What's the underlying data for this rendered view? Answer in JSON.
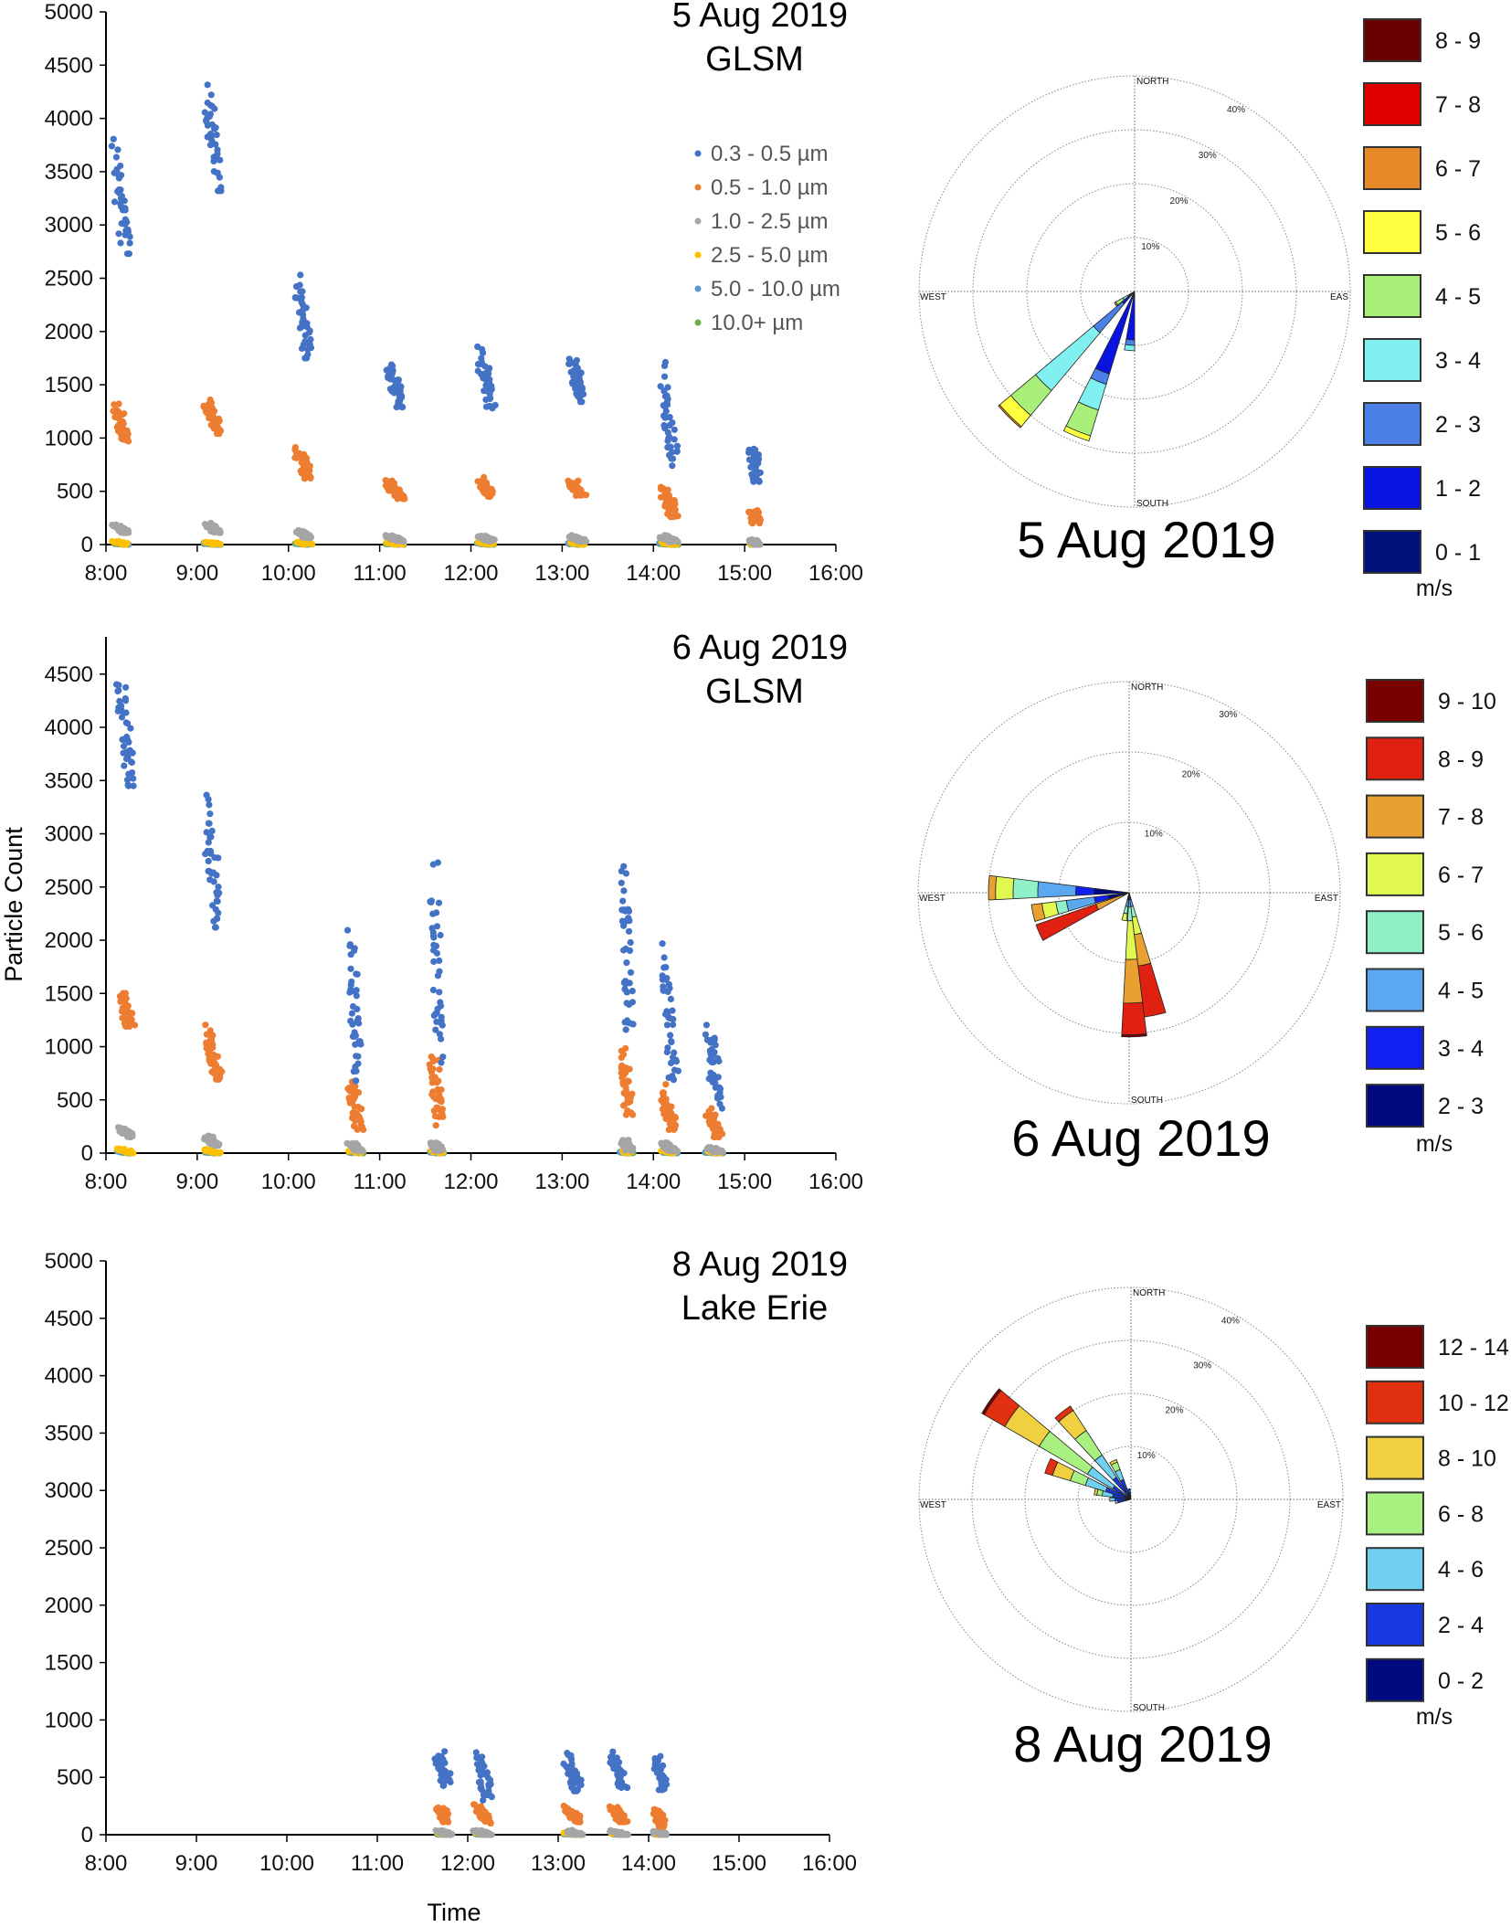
{
  "colors": {
    "series": [
      "#4472c4",
      "#ed7d31",
      "#a5a5a5",
      "#ffc000",
      "#5b9bd5",
      "#70ad47"
    ]
  },
  "axes": {
    "ylabel": "Particle Count",
    "xlabel": "Time"
  },
  "chart_data": [
    {
      "type": "scatter",
      "title": [
        "5 Aug 2019",
        "GLSM"
      ],
      "xlim": [
        "8:00",
        "16:00"
      ],
      "ylim": [
        0,
        5000
      ],
      "xticks": [
        "8:00",
        "9:00",
        "10:00",
        "11:00",
        "12:00",
        "13:00",
        "14:00",
        "15:00",
        "16:00"
      ],
      "yticks": [
        "0",
        "500",
        "1000",
        "1500",
        "2000",
        "2500",
        "3000",
        "3500",
        "4000",
        "4500",
        "5000"
      ],
      "legend": [
        "0.3 - 0.5 µm",
        "0.5 - 1.0 µm",
        "1.0 - 2.5 µm",
        "2.5 - 5.0 µm",
        "5.0 - 10.0 µm",
        "10.0+ µm"
      ],
      "clusters": [
        {
          "time": [
            "8:05",
            "8:15"
          ],
          "ranges": [
            [
              2730,
              3870
            ],
            [
              970,
              1340
            ],
            [
              110,
              200
            ],
            [
              0,
              40
            ],
            [
              0,
              20
            ],
            [
              0,
              12
            ]
          ]
        },
        {
          "time": [
            "9:05",
            "9:15"
          ],
          "ranges": [
            [
              3320,
              4400
            ],
            [
              1040,
              1390
            ],
            [
              110,
              210
            ],
            [
              0,
              30
            ],
            [
              0,
              20
            ],
            [
              0,
              12
            ]
          ]
        },
        {
          "time": [
            "10:05",
            "10:15"
          ],
          "ranges": [
            [
              1750,
              2580
            ],
            [
              620,
              920
            ],
            [
              60,
              140
            ],
            [
              0,
              30
            ],
            [
              0,
              20
            ],
            [
              0,
              12
            ]
          ]
        },
        {
          "time": [
            "11:05",
            "11:15"
          ],
          "ranges": [
            [
              1290,
              1740
            ],
            [
              430,
              610
            ],
            [
              30,
              90
            ],
            [
              0,
              25
            ],
            [
              0,
              15
            ],
            [
              0,
              10
            ]
          ]
        },
        {
          "time": [
            "12:05",
            "12:15"
          ],
          "ranges": [
            [
              1280,
              1870
            ],
            [
              450,
              640
            ],
            [
              30,
              90
            ],
            [
              0,
              25
            ],
            [
              0,
              15
            ],
            [
              0,
              10
            ]
          ]
        },
        {
          "time": [
            "13:05",
            "13:15"
          ],
          "ranges": [
            [
              1340,
              1790
            ],
            [
              430,
              630
            ],
            [
              30,
              90
            ],
            [
              0,
              25
            ],
            [
              0,
              15
            ],
            [
              0,
              10
            ]
          ]
        },
        {
          "time": [
            "14:05",
            "14:15"
          ],
          "ranges": [
            [
              740,
              1770
            ],
            [
              260,
              580
            ],
            [
              20,
              90
            ],
            [
              0,
              25
            ],
            [
              0,
              15
            ],
            [
              0,
              10
            ]
          ]
        },
        {
          "time": [
            "15:05",
            "15:08"
          ],
          "ranges": [
            [
              590,
              960
            ],
            [
              200,
              350
            ],
            [
              0,
              50
            ],
            [
              0,
              20
            ],
            [
              0,
              10
            ],
            [
              0,
              8
            ]
          ]
        }
      ]
    },
    {
      "type": "scatter",
      "title": [
        "6 Aug 2019",
        "GLSM"
      ],
      "xlim": [
        "8:00",
        "16:00"
      ],
      "ylim": [
        0,
        4850
      ],
      "xticks": [
        "8:00",
        "9:00",
        "10:00",
        "11:00",
        "12:00",
        "13:00",
        "14:00",
        "15:00",
        "16:00"
      ],
      "yticks": [
        "0",
        "500",
        "1000",
        "1500",
        "2000",
        "2500",
        "3000",
        "3500",
        "4000",
        "4500"
      ],
      "clusters": [
        {
          "time": [
            "8:08",
            "8:18"
          ],
          "ranges": [
            [
              3450,
              4530
            ],
            [
              1190,
              1570
            ],
            [
              150,
              260
            ],
            [
              0,
              50
            ],
            [
              0,
              20
            ],
            [
              0,
              12
            ]
          ]
        },
        {
          "time": [
            "9:05",
            "9:15"
          ],
          "ranges": [
            [
              2120,
              3460
            ],
            [
              680,
              1220
            ],
            [
              70,
              170
            ],
            [
              0,
              40
            ],
            [
              0,
              20
            ],
            [
              0,
              12
            ]
          ]
        },
        {
          "time": [
            "10:40",
            "10:48"
          ],
          "ranges": [
            [
              680,
              2180
            ],
            [
              220,
              750
            ],
            [
              20,
              100
            ],
            [
              0,
              30
            ],
            [
              0,
              15
            ],
            [
              0,
              10
            ]
          ]
        },
        {
          "time": [
            "11:35",
            "11:40"
          ],
          "ranges": [
            [
              850,
              2800
            ],
            [
              260,
              1000
            ],
            [
              20,
              110
            ],
            [
              0,
              30
            ],
            [
              0,
              15
            ],
            [
              0,
              10
            ]
          ]
        },
        {
          "time": [
            "13:40",
            "13:45"
          ],
          "ranges": [
            [
              1160,
              2920
            ],
            [
              360,
              1030
            ],
            [
              20,
              140
            ],
            [
              0,
              30
            ],
            [
              0,
              15
            ],
            [
              0,
              10
            ]
          ]
        },
        {
          "time": [
            "14:05",
            "14:15"
          ],
          "ranges": [
            [
              690,
              1970
            ],
            [
              220,
              650
            ],
            [
              20,
              100
            ],
            [
              0,
              30
            ],
            [
              0,
              15
            ],
            [
              0,
              10
            ]
          ]
        },
        {
          "time": [
            "14:35",
            "14:45"
          ],
          "ranges": [
            [
              420,
              1290
            ],
            [
              150,
              440
            ],
            [
              10,
              60
            ],
            [
              0,
              20
            ],
            [
              0,
              10
            ],
            [
              0,
              8
            ]
          ]
        }
      ]
    },
    {
      "type": "scatter",
      "title": [
        "8 Aug 2019",
        "Lake Erie"
      ],
      "xlim": [
        "8:00",
        "16:00"
      ],
      "ylim": [
        0,
        5000
      ],
      "xticks": [
        "8:00",
        "9:00",
        "10:00",
        "11:00",
        "12:00",
        "13:00",
        "14:00",
        "15:00",
        "16:00"
      ],
      "yticks": [
        "0",
        "500",
        "1000",
        "1500",
        "2000",
        "2500",
        "3000",
        "3500",
        "4000",
        "4500",
        "5000"
      ],
      "clusters": [
        {
          "time": [
            "11:40",
            "11:48"
          ],
          "ranges": [
            [
              420,
              760
            ],
            [
              110,
              260
            ],
            [
              0,
              40
            ],
            [
              0,
              20
            ],
            [
              0,
              10
            ],
            [
              0,
              8
            ]
          ]
        },
        {
          "time": [
            "12:05",
            "12:15"
          ],
          "ranges": [
            [
              300,
              780
            ],
            [
              100,
              270
            ],
            [
              0,
              40
            ],
            [
              0,
              20
            ],
            [
              0,
              10
            ],
            [
              0,
              8
            ]
          ]
        },
        {
          "time": [
            "13:05",
            "13:15"
          ],
          "ranges": [
            [
              380,
              740
            ],
            [
              110,
              260
            ],
            [
              0,
              40
            ],
            [
              0,
              20
            ],
            [
              0,
              10
            ],
            [
              0,
              8
            ]
          ]
        },
        {
          "time": [
            "13:35",
            "13:45"
          ],
          "ranges": [
            [
              410,
              740
            ],
            [
              110,
              260
            ],
            [
              0,
              40
            ],
            [
              0,
              20
            ],
            [
              0,
              10
            ],
            [
              0,
              8
            ]
          ]
        },
        {
          "time": [
            "14:05",
            "14:10"
          ],
          "ranges": [
            [
              390,
              700
            ],
            [
              70,
              230
            ],
            [
              0,
              40
            ],
            [
              0,
              20
            ],
            [
              0,
              10
            ],
            [
              0,
              8
            ]
          ]
        }
      ]
    },
    {
      "type": "windrose",
      "title": "5 Aug 2019",
      "directions": [
        "NORTH",
        "EAS",
        "SOUTH",
        "WEST"
      ],
      "rings": [
        "10%",
        "20%",
        "30%",
        "40%"
      ],
      "unit": "m/s",
      "bins": [
        {
          "label": "0 - 1",
          "color": "#00107a"
        },
        {
          "label": "1 - 2",
          "color": "#0a14e0"
        },
        {
          "label": "2 - 3",
          "color": "#4a80e8"
        },
        {
          "label": "3 - 4",
          "color": "#80f0f0"
        },
        {
          "label": "4 - 5",
          "color": "#a8f07a"
        },
        {
          "label": "5 - 6",
          "color": "#ffff40"
        },
        {
          "label": "6 - 7",
          "color": "#e8892a"
        },
        {
          "label": "7 - 8",
          "color": "#e00000"
        },
        {
          "label": "8 - 9",
          "color": "#6b0000"
        }
      ],
      "bars": [
        {
          "direction": 225,
          "values": [
            1,
            2,
            7,
            14,
            6,
            2.7,
            0.3,
            0,
            0
          ]
        },
        {
          "direction": 202,
          "values": [
            1,
            15,
            2,
            5,
            5,
            1,
            0,
            0,
            0
          ]
        },
        {
          "direction": 185,
          "values": [
            1,
            8,
            1,
            1,
            0,
            0,
            0,
            0,
            0
          ]
        },
        {
          "direction": 236,
          "values": [
            0.5,
            0.5,
            0.5,
            1,
            1.5,
            0,
            0.3,
            0,
            0
          ]
        }
      ]
    },
    {
      "type": "windrose",
      "title": "6 Aug 2019",
      "directions": [
        "NORTH",
        "EAST",
        "SOUTH",
        "WEST"
      ],
      "rings": [
        "10%",
        "20%",
        "30%"
      ],
      "unit": "m/s",
      "bins": [
        {
          "label": "2 - 3",
          "color": "#000880"
        },
        {
          "label": "3 - 4",
          "color": "#1020f0"
        },
        {
          "label": "4 - 5",
          "color": "#5aa8f0"
        },
        {
          "label": "5 - 6",
          "color": "#90f0c8"
        },
        {
          "label": "6 - 7",
          "color": "#e0f850"
        },
        {
          "label": "7 - 8",
          "color": "#e8a030"
        },
        {
          "label": "8 - 9",
          "color": "#e02010"
        },
        {
          "label": "9 - 10",
          "color": "#7a0000"
        }
      ],
      "bars": [
        {
          "direction": 272,
          "values": [
            5,
            2.6,
            5.4,
            3.5,
            2.5,
            1,
            0,
            0
          ]
        },
        {
          "direction": 258,
          "values": [
            3,
            2,
            4,
            1.5,
            2,
            1.5,
            0,
            0
          ]
        },
        {
          "direction": 246,
          "values": [
            1,
            0,
            0,
            0,
            0,
            4,
            9,
            0
          ]
        },
        {
          "direction": 178,
          "values": [
            0.5,
            0.5,
            1,
            2,
            5.5,
            6.2,
            4.5,
            0.3
          ]
        },
        {
          "direction": 168,
          "values": [
            0.5,
            0.5,
            1,
            1.5,
            2.5,
            4.5,
            7.3,
            0
          ]
        },
        {
          "direction": 190,
          "values": [
            0.5,
            0.5,
            1,
            1,
            1,
            0,
            0,
            0
          ]
        }
      ]
    },
    {
      "type": "windrose",
      "title": "8 Aug 2019",
      "directions": [
        "NORTH",
        "EAST",
        "SOUTH",
        "WEST"
      ],
      "rings": [
        "10%",
        "20%",
        "30%",
        "40%"
      ],
      "unit": "m/s",
      "bins": [
        {
          "label": "0 - 2",
          "color": "#000a80"
        },
        {
          "label": "2 - 4",
          "color": "#1838e0"
        },
        {
          "label": "4 - 6",
          "color": "#70d0f0"
        },
        {
          "label": "6 - 8",
          "color": "#a8f080"
        },
        {
          "label": "8 - 10",
          "color": "#f0d040"
        },
        {
          "label": "10 - 12",
          "color": "#e03010"
        },
        {
          "label": "12 - 14",
          "color": "#780000"
        }
      ],
      "bars": [
        {
          "direction": 305,
          "values": [
            1,
            3,
            5.5,
            10.5,
            7.5,
            4.5,
            0.5
          ]
        },
        {
          "direction": 322,
          "values": [
            1,
            4,
            5,
            5.5,
            4.5,
            1,
            0
          ]
        },
        {
          "direction": 292,
          "values": [
            1,
            4,
            4,
            3,
            3.5,
            1.5,
            0
          ]
        },
        {
          "direction": 335,
          "values": [
            1,
            3,
            2,
            1.5,
            0.5,
            0,
            0
          ]
        },
        {
          "direction": 282,
          "values": [
            1,
            2.5,
            2,
            1,
            0.5,
            0,
            0
          ]
        },
        {
          "direction": 270,
          "values": [
            1,
            2,
            1,
            0,
            0,
            0,
            0
          ]
        },
        {
          "direction": 260,
          "values": [
            1,
            1.5,
            0.5,
            0,
            0,
            0,
            0
          ]
        },
        {
          "direction": 350,
          "values": [
            1,
            1,
            0,
            0,
            0,
            0,
            0
          ]
        }
      ]
    }
  ]
}
